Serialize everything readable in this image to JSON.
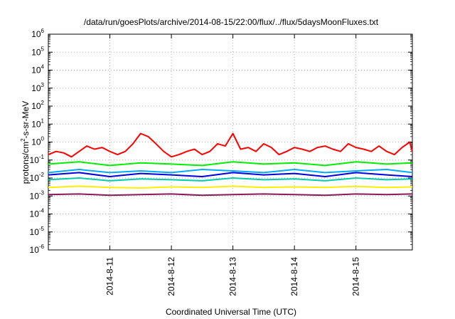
{
  "chart_data": {
    "type": "line",
    "title": "/data/run/goesPlots/archive/2014-08-15/22:00/flux/../flux/5daysMoonFluxes.txt",
    "xlabel": "Coordinated Universal Time (UTC)",
    "ylabel": {
      "main": "protons/cm",
      "exp": "2",
      "rest": "-s-sr-MeV"
    },
    "y_scale": "log",
    "ylim": [
      1e-06,
      1000000.0
    ],
    "y_ticks": [
      {
        "base": "10",
        "exp": "6"
      },
      {
        "base": "10",
        "exp": "5"
      },
      {
        "base": "10",
        "exp": "4"
      },
      {
        "base": "10",
        "exp": "3"
      },
      {
        "base": "10",
        "exp": "2"
      },
      {
        "base": "10",
        "exp": "1"
      },
      {
        "base": "10",
        "exp": "0"
      },
      {
        "base": "10",
        "exp": "-1"
      },
      {
        "base": "10",
        "exp": "-2"
      },
      {
        "base": "10",
        "exp": "-3"
      },
      {
        "base": "10",
        "exp": "-4"
      },
      {
        "base": "10",
        "exp": "-5"
      },
      {
        "base": "10",
        "exp": "-6"
      }
    ],
    "xlim": [
      "2014-08-10 00:00",
      "2014-08-15 22:00"
    ],
    "x_ticks": [
      "2014-8-11",
      "2014-8-12",
      "2014-8-13",
      "2014-8-14",
      "2014-8-15"
    ],
    "grid": true,
    "legend": "none",
    "series": [
      {
        "color": "#ff0000",
        "x": [
          "2014-08-10 00:00",
          "2014-08-10 03:00",
          "2014-08-10 06:00",
          "2014-08-10 09:00",
          "2014-08-10 12:00",
          "2014-08-10 15:00",
          "2014-08-10 18:00",
          "2014-08-10 21:00",
          "2014-08-11 00:00",
          "2014-08-11 03:00",
          "2014-08-11 06:00",
          "2014-08-11 09:00",
          "2014-08-11 12:00",
          "2014-08-11 15:00",
          "2014-08-11 18:00",
          "2014-08-11 21:00",
          "2014-08-12 00:00",
          "2014-08-12 03:00",
          "2014-08-12 06:00",
          "2014-08-12 09:00",
          "2014-08-12 12:00",
          "2014-08-12 15:00",
          "2014-08-12 18:00",
          "2014-08-12 21:00",
          "2014-08-13 00:00",
          "2014-08-13 03:00",
          "2014-08-13 06:00",
          "2014-08-13 09:00",
          "2014-08-13 12:00",
          "2014-08-13 15:00",
          "2014-08-13 18:00",
          "2014-08-13 21:00",
          "2014-08-14 00:00",
          "2014-08-14 03:00",
          "2014-08-14 06:00",
          "2014-08-14 09:00",
          "2014-08-14 12:00",
          "2014-08-14 15:00",
          "2014-08-14 18:00",
          "2014-08-14 21:00",
          "2014-08-15 00:00",
          "2014-08-15 03:00",
          "2014-08-15 06:00",
          "2014-08-15 09:00",
          "2014-08-15 12:00",
          "2014-08-15 15:00",
          "2014-08-15 18:00",
          "2014-08-15 21:00",
          "2014-08-15 22:00"
        ],
        "y": [
          0.2,
          0.3,
          0.25,
          0.15,
          0.3,
          0.6,
          0.4,
          0.5,
          0.3,
          0.2,
          0.3,
          0.8,
          3,
          2,
          0.8,
          0.3,
          0.15,
          0.2,
          0.3,
          0.4,
          0.2,
          0.3,
          0.8,
          0.6,
          3,
          0.4,
          0.5,
          0.3,
          0.8,
          0.5,
          0.2,
          0.3,
          0.5,
          0.4,
          0.3,
          0.5,
          0.6,
          0.4,
          0.3,
          0.8,
          0.5,
          0.4,
          0.3,
          0.6,
          0.3,
          0.2,
          0.5,
          1.0,
          0.3
        ]
      },
      {
        "color": "#00ee00",
        "x": [
          "2014-08-10 00:00",
          "2014-08-10 12:00",
          "2014-08-11 00:00",
          "2014-08-11 12:00",
          "2014-08-12 00:00",
          "2014-08-12 12:00",
          "2014-08-13 00:00",
          "2014-08-13 12:00",
          "2014-08-14 00:00",
          "2014-08-14 12:00",
          "2014-08-15 00:00",
          "2014-08-15 12:00",
          "2014-08-15 22:00"
        ],
        "y": [
          0.06,
          0.08,
          0.05,
          0.07,
          0.06,
          0.05,
          0.08,
          0.06,
          0.07,
          0.05,
          0.08,
          0.06,
          0.07
        ]
      },
      {
        "color": "#00aaff",
        "x": [
          "2014-08-10 00:00",
          "2014-08-10 12:00",
          "2014-08-11 00:00",
          "2014-08-11 12:00",
          "2014-08-12 00:00",
          "2014-08-12 12:00",
          "2014-08-13 00:00",
          "2014-08-13 12:00",
          "2014-08-14 00:00",
          "2014-08-14 12:00",
          "2014-08-15 00:00",
          "2014-08-15 12:00",
          "2014-08-15 22:00"
        ],
        "y": [
          0.02,
          0.03,
          0.02,
          0.025,
          0.02,
          0.03,
          0.025,
          0.02,
          0.03,
          0.02,
          0.025,
          0.03,
          0.02
        ]
      },
      {
        "color": "#0000dd",
        "x": [
          "2014-08-10 00:00",
          "2014-08-10 12:00",
          "2014-08-11 00:00",
          "2014-08-11 12:00",
          "2014-08-12 00:00",
          "2014-08-12 12:00",
          "2014-08-13 00:00",
          "2014-08-13 12:00",
          "2014-08-14 00:00",
          "2014-08-14 12:00",
          "2014-08-15 00:00",
          "2014-08-15 12:00",
          "2014-08-15 22:00"
        ],
        "y": [
          0.015,
          0.02,
          0.012,
          0.018,
          0.015,
          0.012,
          0.02,
          0.015,
          0.018,
          0.012,
          0.02,
          0.015,
          0.012
        ]
      },
      {
        "color": "#00ccaa",
        "x": [
          "2014-08-10 00:00",
          "2014-08-10 12:00",
          "2014-08-11 00:00",
          "2014-08-11 12:00",
          "2014-08-12 00:00",
          "2014-08-12 12:00",
          "2014-08-13 00:00",
          "2014-08-13 12:00",
          "2014-08-14 00:00",
          "2014-08-14 12:00",
          "2014-08-15 00:00",
          "2014-08-15 12:00",
          "2014-08-15 22:00"
        ],
        "y": [
          0.008,
          0.01,
          0.007,
          0.009,
          0.008,
          0.007,
          0.01,
          0.008,
          0.009,
          0.007,
          0.01,
          0.008,
          0.009
        ]
      },
      {
        "color": "#ffee00",
        "x": [
          "2014-08-10 00:00",
          "2014-08-10 12:00",
          "2014-08-11 00:00",
          "2014-08-11 12:00",
          "2014-08-12 00:00",
          "2014-08-12 12:00",
          "2014-08-13 00:00",
          "2014-08-13 12:00",
          "2014-08-14 00:00",
          "2014-08-14 12:00",
          "2014-08-15 00:00",
          "2014-08-15 12:00",
          "2014-08-15 22:00"
        ],
        "y": [
          0.003,
          0.0035,
          0.003,
          0.0028,
          0.0032,
          0.003,
          0.0035,
          0.003,
          0.0032,
          0.003,
          0.0034,
          0.003,
          0.0032
        ]
      },
      {
        "color": "#8b1a5a",
        "x": [
          "2014-08-10 00:00",
          "2014-08-10 12:00",
          "2014-08-11 00:00",
          "2014-08-11 12:00",
          "2014-08-12 00:00",
          "2014-08-12 12:00",
          "2014-08-13 00:00",
          "2014-08-13 12:00",
          "2014-08-14 00:00",
          "2014-08-14 12:00",
          "2014-08-15 00:00",
          "2014-08-15 12:00",
          "2014-08-15 22:00"
        ],
        "y": [
          0.0012,
          0.0013,
          0.0011,
          0.0012,
          0.0013,
          0.0011,
          0.0012,
          0.0013,
          0.0012,
          0.0011,
          0.0013,
          0.0012,
          0.0013
        ]
      }
    ]
  }
}
